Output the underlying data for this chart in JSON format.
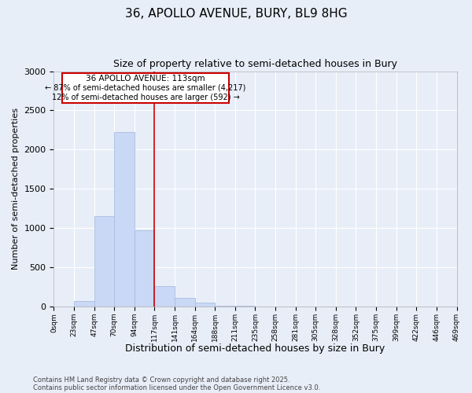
{
  "title": "36, APOLLO AVENUE, BURY, BL9 8HG",
  "subtitle": "Size of property relative to semi-detached houses in Bury",
  "xlabel": "Distribution of semi-detached houses by size in Bury",
  "ylabel": "Number of semi-detached properties",
  "bin_labels": [
    "0sqm",
    "23sqm",
    "47sqm",
    "70sqm",
    "94sqm",
    "117sqm",
    "141sqm",
    "164sqm",
    "188sqm",
    "211sqm",
    "235sqm",
    "258sqm",
    "281sqm",
    "305sqm",
    "328sqm",
    "352sqm",
    "375sqm",
    "399sqm",
    "422sqm",
    "446sqm",
    "469sqm"
  ],
  "bar_values": [
    0,
    75,
    1150,
    2225,
    975,
    265,
    110,
    55,
    15,
    15,
    0,
    0,
    0,
    0,
    0,
    0,
    0,
    0,
    0,
    0
  ],
  "bar_color": "#c8d8f5",
  "bar_edge_color": "#aabde0",
  "vline_color": "#cc0000",
  "vline_x_idx": 5,
  "annotation_title": "36 APOLLO AVENUE: 113sqm",
  "annotation_line1": "← 87% of semi-detached houses are smaller (4,217)",
  "annotation_line2": "12% of semi-detached houses are larger (592) →",
  "annotation_box_color": "#cc0000",
  "ylim": [
    0,
    3000
  ],
  "yticks": [
    0,
    500,
    1000,
    1500,
    2000,
    2500,
    3000
  ],
  "footer_line1": "Contains HM Land Registry data © Crown copyright and database right 2025.",
  "footer_line2": "Contains public sector information licensed under the Open Government Licence v3.0.",
  "background_color": "#e8eef8",
  "plot_background": "#e8eef8",
  "grid_color": "#ffffff"
}
